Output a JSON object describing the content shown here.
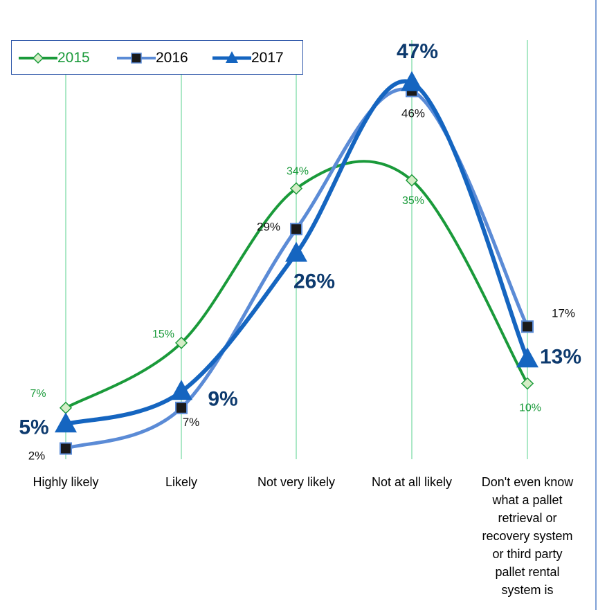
{
  "chart_data": {
    "type": "line",
    "categories": [
      "Highly likely",
      "Likely",
      "Not very likely",
      "Not at all likely",
      "Don't even know\nwhat a pallet\nretrieval or\nrecovery system\nor third party\npallet rental\nsystem is"
    ],
    "series": [
      {
        "name": "2015",
        "values": [
          7,
          15,
          34,
          35,
          10
        ],
        "labels": [
          "7%",
          "15%",
          "34%",
          "35%",
          "10%"
        ],
        "color": "#1a9a3a",
        "marker": "diamond"
      },
      {
        "name": "2016",
        "values": [
          2,
          7,
          29,
          46,
          17
        ],
        "labels": [
          "2%",
          "7%",
          "29%",
          "46%",
          "17%"
        ],
        "color": "#5b8bd6",
        "marker": "square"
      },
      {
        "name": "2017",
        "values": [
          5,
          9,
          26,
          47,
          13
        ],
        "labels": [
          "5%",
          "9%",
          "26%",
          "47%",
          "13%"
        ],
        "color": "#1565c0",
        "marker": "triangle"
      }
    ],
    "ylim": [
      0,
      50
    ],
    "grid": "vertical drop lines at categories",
    "legend": "top-left",
    "smooth": true
  }
}
